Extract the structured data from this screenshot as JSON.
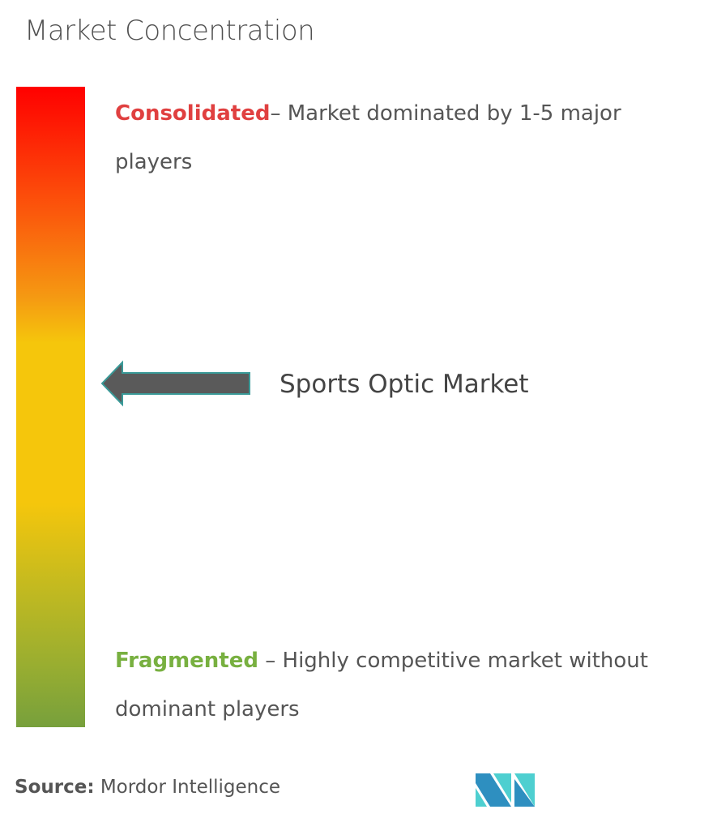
{
  "title": "Market Concentration",
  "scale": {
    "top_color": "#ff0000",
    "middle_color": "#f5c60c",
    "bottom_color": "#77a03c"
  },
  "consolidated": {
    "label": "Consolidated",
    "text": "– Market dominated by 1-5 major players",
    "color": "#e04040"
  },
  "fragmented": {
    "label": "Fragmented",
    "text": " – Highly competitive market without dominant players",
    "color": "#78b040"
  },
  "marker": {
    "label": "Sports Optic Market",
    "icon": "left-arrow-icon"
  },
  "source": {
    "label": "Source:",
    "value": " Mordor Intelligence"
  },
  "logo": {
    "name": "Mordor Intelligence logo",
    "colors": [
      "#2e8fc0",
      "#4ecfd0"
    ]
  }
}
